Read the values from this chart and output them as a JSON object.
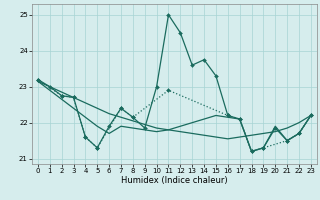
{
  "xlabel": "Humidex (Indice chaleur)",
  "x": [
    0,
    1,
    2,
    3,
    4,
    5,
    6,
    7,
    8,
    9,
    10,
    11,
    12,
    13,
    14,
    15,
    16,
    17,
    18,
    19,
    20,
    21,
    22,
    23
  ],
  "line_zigzag": [
    23.2,
    23.0,
    22.75,
    22.7,
    21.6,
    21.3,
    21.9,
    22.4,
    22.15,
    21.85,
    23.0,
    25.0,
    24.5,
    23.6,
    23.75,
    23.3,
    22.2,
    22.1,
    21.2,
    21.3,
    21.85,
    21.5,
    21.7,
    22.2
  ],
  "line_reg_decline": [
    23.15,
    23.0,
    22.85,
    22.7,
    22.55,
    22.4,
    22.25,
    22.15,
    22.05,
    21.95,
    21.85,
    21.8,
    21.75,
    21.7,
    21.65,
    21.6,
    21.55,
    21.6,
    21.65,
    21.7,
    21.75,
    21.85,
    22.0,
    22.2
  ],
  "line_reg_cross": [
    23.15,
    22.9,
    22.65,
    22.4,
    22.15,
    21.9,
    21.7,
    21.9,
    21.85,
    21.8,
    21.75,
    21.8,
    21.9,
    22.0,
    22.1,
    22.2,
    22.15,
    22.1,
    21.2,
    21.3,
    21.9,
    21.5,
    21.7,
    22.2
  ],
  "sparse_x": [
    0,
    2,
    3,
    4,
    5,
    7,
    8,
    11,
    16,
    17,
    18,
    19,
    21,
    22,
    23
  ],
  "sparse_y": [
    23.2,
    22.75,
    22.7,
    21.6,
    21.3,
    22.4,
    22.15,
    22.9,
    22.2,
    22.1,
    21.2,
    21.3,
    21.5,
    21.7,
    22.2
  ],
  "bg_color": "#d6eded",
  "grid_color": "#a8d4d4",
  "line_color": "#1a6b5e",
  "ylim": [
    20.85,
    25.3
  ],
  "yticks": [
    21,
    22,
    23,
    24,
    25
  ],
  "xticks": [
    0,
    1,
    2,
    3,
    4,
    5,
    6,
    7,
    8,
    9,
    10,
    11,
    12,
    13,
    14,
    15,
    16,
    17,
    18,
    19,
    20,
    21,
    22,
    23
  ]
}
